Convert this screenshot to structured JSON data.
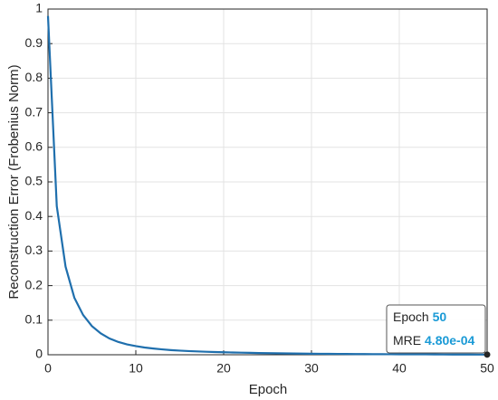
{
  "chart_data": {
    "type": "line",
    "x_label": "Epoch",
    "y_label": "Reconstruction Error (Frobenius Norm)",
    "x": [
      0,
      1,
      2,
      3,
      4,
      5,
      6,
      7,
      8,
      9,
      10,
      11,
      12,
      13,
      14,
      15,
      16,
      17,
      18,
      19,
      20,
      21,
      22,
      23,
      24,
      25,
      26,
      27,
      28,
      29,
      30,
      31,
      32,
      33,
      34,
      35,
      36,
      37,
      38,
      39,
      40,
      41,
      42,
      43,
      44,
      45,
      46,
      47,
      48,
      49,
      50
    ],
    "series": [
      {
        "name": "MRE",
        "color": "#1f6fad",
        "values": [
          0.98,
          0.43,
          0.255,
          0.165,
          0.115,
          0.083,
          0.062,
          0.047,
          0.037,
          0.03,
          0.025,
          0.021,
          0.018,
          0.0155,
          0.0135,
          0.012,
          0.0107,
          0.0096,
          0.0087,
          0.0079,
          0.0072,
          0.0066,
          0.006,
          0.0055,
          0.005,
          0.0046,
          0.0042,
          0.0039,
          0.0036,
          0.0033,
          0.003,
          0.0028,
          0.0026,
          0.0024,
          0.0022,
          0.002,
          0.0019,
          0.0017,
          0.0016,
          0.0015,
          0.0014,
          0.0013,
          0.0012,
          0.0011,
          0.001,
          0.00085,
          0.00075,
          0.00065,
          0.0006,
          0.00052,
          0.00048
        ]
      }
    ],
    "xlim": [
      0,
      50
    ],
    "xticks": [
      0,
      10,
      20,
      30,
      40,
      50
    ],
    "ylim": [
      0,
      1
    ],
    "yticks": [
      0,
      0.1,
      0.2,
      0.3,
      0.4,
      0.5,
      0.6,
      0.7,
      0.8,
      0.9,
      1
    ],
    "grid": true,
    "datatip": {
      "x_name": "Epoch",
      "x": 50,
      "y_name": "MRE",
      "y": {
        "value": 0.00048,
        "label": "4.80e-04"
      },
      "value_color": "#1a9ad6"
    }
  }
}
